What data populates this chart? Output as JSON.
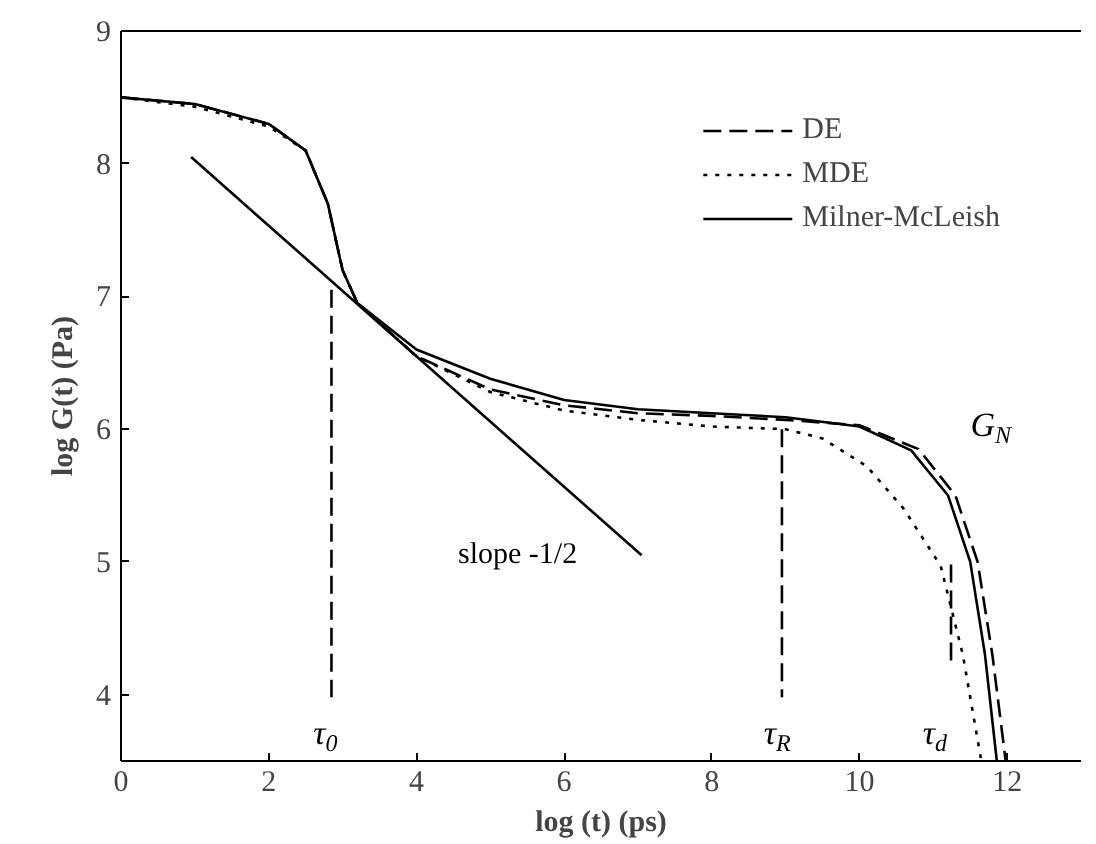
{
  "chart_data": {
    "type": "line",
    "xlabel": "log (t) (ps)",
    "ylabel": "log G(t) (Pa)",
    "xlim": [
      0,
      13
    ],
    "ylim": [
      3.5,
      9
    ],
    "xticks": [
      0,
      2,
      4,
      6,
      8,
      10,
      12
    ],
    "yticks": [
      4,
      5,
      6,
      7,
      8,
      9
    ],
    "grid": false,
    "legend": "top right",
    "series": [
      {
        "name": "DE",
        "color": "#000000",
        "line_style": "dashed",
        "x": [
          0,
          1,
          2,
          2.5,
          2.8,
          3.0,
          3.2,
          4,
          5,
          6,
          7,
          8,
          9,
          10,
          10.8,
          11.3,
          11.6,
          11.8,
          11.98
        ],
        "values": [
          8.5,
          8.45,
          8.3,
          8.1,
          7.7,
          7.2,
          6.95,
          6.55,
          6.3,
          6.18,
          6.12,
          6.1,
          6.07,
          6.03,
          5.85,
          5.5,
          5.0,
          4.3,
          3.5
        ]
      },
      {
        "name": "MDE",
        "color": "#000000",
        "line_style": "dotted",
        "x": [
          0,
          1,
          2,
          2.5,
          2.8,
          3.0,
          3.2,
          4,
          5,
          6,
          7,
          8,
          9,
          9.5,
          10.1,
          10.6,
          11.1,
          11.4,
          11.65
        ],
        "values": [
          8.5,
          8.43,
          8.28,
          8.1,
          7.7,
          7.2,
          6.95,
          6.55,
          6.28,
          6.14,
          6.07,
          6.02,
          6.0,
          5.93,
          5.72,
          5.4,
          4.97,
          4.3,
          3.5
        ]
      },
      {
        "name": "Milner-McLeish",
        "color": "#000000",
        "line_style": "solid",
        "x": [
          0,
          1,
          2,
          2.5,
          2.8,
          3.0,
          3.2,
          4,
          5,
          6,
          7,
          8,
          9,
          10,
          10.7,
          11.2,
          11.5,
          11.7,
          11.86
        ],
        "values": [
          8.5,
          8.45,
          8.3,
          8.1,
          7.7,
          7.2,
          6.95,
          6.6,
          6.38,
          6.22,
          6.15,
          6.12,
          6.09,
          6.02,
          5.84,
          5.5,
          5.0,
          4.3,
          3.5
        ]
      },
      {
        "color": "#000000",
        "line_style": "solid",
        "x": [
          0.95,
          7.05
        ],
        "values": [
          8.05,
          5.05
        ]
      },
      {
        "color": "#000000",
        "line_style": "dashed",
        "x": [
          2.85,
          2.85
        ],
        "values": [
          7.05,
          3.98
        ]
      },
      {
        "color": "#000000",
        "line_style": "dashed",
        "x": [
          8.95,
          8.95
        ],
        "values": [
          6.0,
          3.98
        ]
      },
      {
        "color": "#000000",
        "line_style": "dashed",
        "x": [
          11.24,
          11.24
        ],
        "values": [
          4.98,
          4.25
        ]
      }
    ],
    "annotations": [
      "slope -1/2",
      "τ$_{0}$",
      "τ$_{R}$",
      "τ$_{d}$",
      "G$_{N}$"
    ]
  }
}
